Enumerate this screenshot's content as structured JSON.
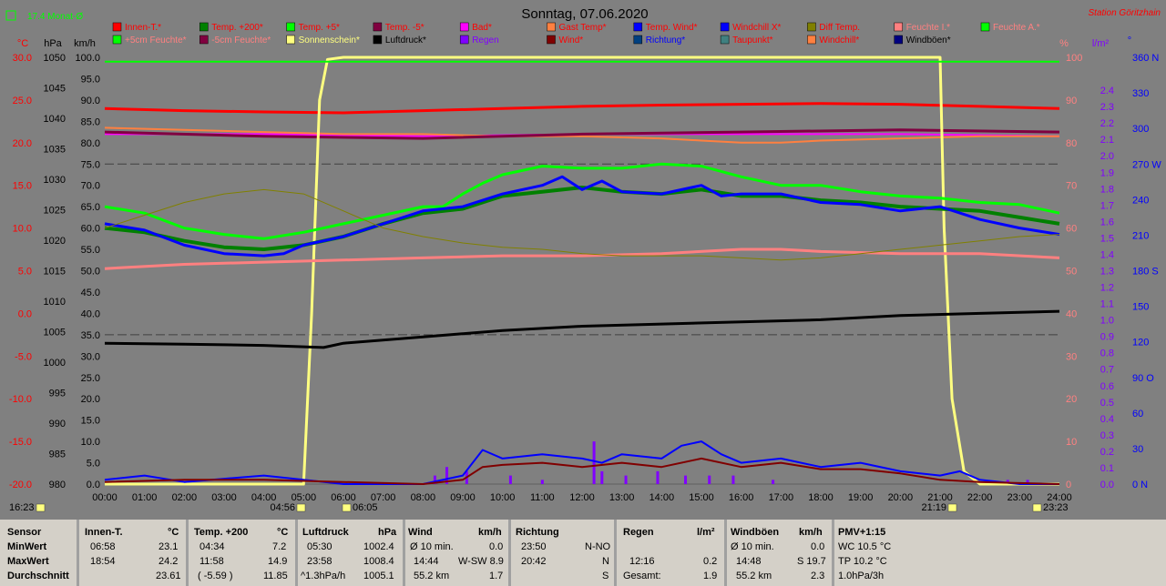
{
  "header": {
    "left_indicator": "17.4 Monat-Ø",
    "title": "Sonntag, 07.06.2020",
    "station": "Station Göritzhain"
  },
  "colors": {
    "background": "#808080",
    "footer_bg": "#d4d0c8",
    "red": "#ff0000",
    "green": "#008000",
    "lime": "#00ff00",
    "blue": "#0000ff",
    "black": "#000000",
    "salmon": "#ff8080",
    "purple": "#8000ff",
    "sun": "#ffff80"
  },
  "legend": [
    {
      "label": "Innen-T.*",
      "color": "#ff0000",
      "text_color": "#ff0000"
    },
    {
      "label": "Temp. +200*",
      "color": "#008000",
      "text_color": "#ff0000"
    },
    {
      "label": "Temp. +5*",
      "color": "#00ff00",
      "text_color": "#ff0000"
    },
    {
      "label": "Temp. -5*",
      "color": "#800040",
      "text_color": "#ff0000"
    },
    {
      "label": "Bad*",
      "color": "#ff00ff",
      "text_color": "#ff0000"
    },
    {
      "label": "Gast Temp*",
      "color": "#ff8040",
      "text_color": "#ff0000"
    },
    {
      "label": "Temp. Wind*",
      "color": "#0000ff",
      "text_color": "#ff0000"
    },
    {
      "label": "Windchill X*",
      "color": "#0000ff",
      "text_color": "#ff0000"
    },
    {
      "label": "Diff Temp.",
      "color": "#808000",
      "text_color": "#ff0000"
    },
    {
      "label": "Feuchte I.*",
      "color": "#ff8080",
      "text_color": "#ff8080"
    },
    {
      "label": "Feuchte A.*",
      "color": "#00ff00",
      "text_color": "#ff8080"
    },
    {
      "label": "+5cm Feuchte*",
      "color": "#00ff00",
      "text_color": "#ff8080"
    },
    {
      "label": "-5cm Feuchte*",
      "color": "#800040",
      "text_color": "#ff8080"
    },
    {
      "label": "Sonnenschein*",
      "color": "#ffff80",
      "text_color": "#ffff80"
    },
    {
      "label": "Luftdruck*",
      "color": "#000000",
      "text_color": "#000000"
    },
    {
      "label": "Regen",
      "color": "#8000ff",
      "text_color": "#8000ff"
    },
    {
      "label": "Wind*",
      "color": "#800000",
      "text_color": "#ff0000"
    },
    {
      "label": "Richtung*",
      "color": "#004080",
      "text_color": "#0000ff"
    },
    {
      "label": "Taupunkt*",
      "color": "#408080",
      "text_color": "#ff0000"
    },
    {
      "label": "Windchill*",
      "color": "#ff8040",
      "text_color": "#ff0000"
    },
    {
      "label": "Windböen*",
      "color": "#000080",
      "text_color": "#000000"
    }
  ],
  "axes": {
    "c_unit": "°C",
    "hpa_unit": "hPa",
    "kmh_unit": "km/h",
    "pct_unit": "%",
    "rain_unit": "l/m²",
    "deg_unit": "°",
    "c_ticks": [
      "30.0",
      "25.0",
      "20.0",
      "15.0",
      "10.0",
      "5.0",
      "0.0",
      "-5.0",
      "-10.0",
      "-15.0",
      "-20.0"
    ],
    "hpa_ticks": [
      "1050",
      "1045",
      "1040",
      "1035",
      "1030",
      "1025",
      "1020",
      "1015",
      "1010",
      "1005",
      "1000",
      "995",
      "990",
      "985",
      "980"
    ],
    "kmh_ticks": [
      "100.0",
      "95.0",
      "90.0",
      "85.0",
      "80.0",
      "75.0",
      "70.0",
      "65.0",
      "60.0",
      "55.0",
      "50.0",
      "45.0",
      "40.0",
      "35.0",
      "30.0",
      "25.0",
      "20.0",
      "15.0",
      "10.0",
      "5.0",
      "0.0"
    ],
    "pct_ticks": [
      "100",
      "90",
      "80",
      "70",
      "60",
      "50",
      "40",
      "30",
      "20",
      "10",
      "0"
    ],
    "rain_ticks": [
      "2.4",
      "2.3",
      "2.2",
      "2.1",
      "2.0",
      "1.9",
      "1.8",
      "1.7",
      "1.6",
      "1.5",
      "1.4",
      "1.3",
      "1.2",
      "1.1",
      "1.0",
      "0.9",
      "0.8",
      "0.7",
      "0.6",
      "0.5",
      "0.4",
      "0.3",
      "0.2",
      "0.1",
      "0.0"
    ],
    "dir_ticks": [
      "360 N",
      "330",
      "300",
      "270 W",
      "240",
      "210",
      "180 S",
      "150",
      "120",
      "90 O",
      "60",
      "30",
      "0 N"
    ],
    "time_ticks": [
      "00:00",
      "01:00",
      "02:00",
      "03:00",
      "04:00",
      "05:00",
      "06:00",
      "07:00",
      "08:00",
      "09:00",
      "10:00",
      "11:00",
      "12:00",
      "13:00",
      "14:00",
      "15:00",
      "16:00",
      "17:00",
      "18:00",
      "19:00",
      "20:00",
      "21:00",
      "22:00",
      "23:00",
      "24:00"
    ]
  },
  "sun_markers": {
    "left": "16:23",
    "sunrise": "04:56",
    "astro_rise": "06:05",
    "sunset": "21:19",
    "right": "23:23"
  },
  "chart_data": {
    "type": "line",
    "title": "Sonntag, 07.06.2020",
    "x_unit": "hour",
    "x_range": [
      0,
      24
    ],
    "ylim_kmh": [
      0,
      100
    ],
    "ylim_c": [
      -20,
      30
    ],
    "ylim_hpa": [
      980,
      1050
    ],
    "grid": false,
    "reference_lines_kmh": [
      75,
      35
    ],
    "series": [
      {
        "name": "Innen-T.*",
        "axis": "kmh",
        "color": "#ff0000",
        "width": 3,
        "x": [
          0,
          2,
          4,
          6,
          8,
          10,
          12,
          14,
          16,
          18,
          20,
          22,
          24
        ],
        "y": [
          88,
          87.5,
          87.2,
          87,
          87.5,
          88,
          88.5,
          88.8,
          89,
          89.2,
          89,
          88.5,
          88
        ]
      },
      {
        "name": "Bad*",
        "axis": "kmh",
        "color": "#ff00ff",
        "width": 2,
        "x": [
          0,
          4,
          8,
          12,
          16,
          20,
          24
        ],
        "y": [
          82,
          82,
          81.5,
          82,
          82,
          82,
          81.5
        ]
      },
      {
        "name": "Gast Temp*",
        "axis": "kmh",
        "color": "#ff8040",
        "width": 2,
        "x": [
          0,
          2,
          4,
          6,
          8,
          10,
          12,
          14,
          15,
          16,
          17,
          18,
          20,
          22,
          24
        ],
        "y": [
          83.5,
          83,
          82.5,
          82,
          82,
          81.5,
          81.5,
          81,
          80.5,
          80,
          80,
          80.5,
          81,
          81.5,
          81.5
        ]
      },
      {
        "name": "Temp. -5*",
        "axis": "kmh",
        "color": "#800040",
        "width": 3,
        "x": [
          0,
          4,
          8,
          12,
          16,
          20,
          24
        ],
        "y": [
          82.5,
          81.5,
          81,
          82,
          82.5,
          83,
          82.5
        ]
      },
      {
        "name": "Sonnenschein*",
        "axis": "kmh",
        "color": "#ffff80",
        "width": 3,
        "x": [
          0,
          5.0,
          5.2,
          5.4,
          5.6,
          6.0,
          21.0,
          21.1,
          21.3,
          21.6,
          22,
          24
        ],
        "y": [
          0,
          0,
          40,
          90,
          99.5,
          100,
          100,
          60,
          20,
          3,
          0,
          0
        ]
      },
      {
        "name": "Feuchte A.*",
        "axis": "kmh",
        "color": "#00ff00",
        "width": 2,
        "x": [
          0,
          24
        ],
        "y": [
          99,
          99
        ]
      },
      {
        "name": "Temp. +5*",
        "axis": "kmh",
        "color": "#00ff00",
        "width": 3,
        "x": [
          0,
          1,
          2,
          3,
          4,
          5,
          6,
          7,
          8,
          8.5,
          9,
          9.5,
          10,
          11,
          12,
          13,
          14,
          15,
          16,
          17,
          18,
          19,
          20,
          21,
          22,
          23,
          24
        ],
        "y": [
          65,
          63.5,
          60,
          58.5,
          57.5,
          59,
          61,
          63,
          65,
          65,
          68,
          70.5,
          72.5,
          74.5,
          74,
          74,
          75,
          74.5,
          72,
          70,
          70,
          68.5,
          67.5,
          67,
          66,
          65.5,
          63.5
        ]
      },
      {
        "name": "Temp. +200*",
        "axis": "kmh",
        "color": "#008000",
        "width": 4,
        "x": [
          0,
          1,
          2,
          3,
          4,
          5,
          6,
          7,
          8,
          9,
          10,
          11,
          12,
          13,
          14,
          15,
          16,
          17,
          18,
          19,
          20,
          21,
          22,
          23,
          24
        ],
        "y": [
          60,
          59,
          57,
          55.5,
          55,
          56,
          58,
          61,
          63.5,
          64.5,
          67.5,
          68.5,
          69.5,
          68.5,
          68,
          69,
          67.5,
          67.5,
          66.5,
          66,
          65,
          64.5,
          64,
          62.5,
          61
        ]
      },
      {
        "name": "Temp. Wind*",
        "axis": "kmh",
        "color": "#0000ff",
        "width": 3,
        "x": [
          0,
          1,
          2,
          3,
          4,
          4.5,
          5,
          6,
          7,
          8,
          9,
          10,
          11,
          11.5,
          12,
          12.5,
          13,
          14,
          14.5,
          15,
          15.5,
          16,
          17,
          18,
          19,
          20,
          21,
          22,
          23,
          24
        ],
        "y": [
          61,
          59.5,
          56,
          54,
          53.5,
          54,
          56,
          58,
          61,
          64,
          65,
          68,
          70,
          72,
          69,
          71,
          68.5,
          68,
          69,
          70,
          67.5,
          68,
          68,
          66,
          65.5,
          64,
          65,
          62,
          60,
          58.5
        ]
      },
      {
        "name": "Feuchte I.*",
        "axis": "kmh",
        "color": "#ff8080",
        "width": 3,
        "x": [
          0,
          2,
          4,
          6,
          8,
          10,
          12,
          14,
          16,
          17,
          18,
          20,
          22,
          24
        ],
        "y": [
          50.5,
          51.5,
          52,
          52.5,
          53,
          53.5,
          53.5,
          54,
          55,
          55,
          54.5,
          54,
          54,
          53
        ]
      },
      {
        "name": "Luftdruck*",
        "axis": "kmh",
        "color": "#000000",
        "width": 3,
        "x": [
          0,
          2,
          4,
          5.5,
          6,
          8,
          10,
          12,
          14,
          16,
          18,
          20,
          22,
          24
        ],
        "y": [
          33,
          32.8,
          32.5,
          32,
          33,
          34.5,
          36,
          37,
          37.5,
          38,
          38.5,
          39.5,
          40,
          40.5
        ]
      },
      {
        "name": "Windböen*",
        "axis": "kmh",
        "color": "#0000ff",
        "width": 2,
        "x": [
          0,
          1,
          2,
          4,
          5,
          6,
          8,
          9,
          9.5,
          10,
          11,
          12,
          12.5,
          13,
          14,
          14.5,
          15,
          15.5,
          16,
          17,
          18,
          19,
          20,
          21,
          21.5,
          22,
          23,
          24
        ],
        "y": [
          1,
          2,
          0.5,
          2,
          1,
          0,
          0,
          2,
          8,
          6,
          7,
          6,
          5,
          7,
          6,
          9,
          10,
          7,
          5,
          6,
          4,
          5,
          3,
          2,
          3,
          1,
          0,
          0
        ]
      },
      {
        "name": "Wind*",
        "axis": "kmh",
        "color": "#800000",
        "width": 2,
        "x": [
          0,
          2,
          4,
          6,
          8,
          9,
          9.5,
          10,
          11,
          12,
          13,
          14,
          15,
          16,
          17,
          18,
          19,
          20,
          21,
          22,
          24
        ],
        "y": [
          0.5,
          1,
          1,
          0.5,
          0,
          1,
          4,
          4.5,
          5,
          4,
          5,
          4,
          6,
          4,
          5,
          3.5,
          3.5,
          2.5,
          1,
          0.5,
          0
        ]
      },
      {
        "name": "Taupunkt*",
        "axis": "kmh",
        "color": "#808000",
        "width": 1,
        "x": [
          0,
          1,
          2,
          3,
          4,
          5,
          6,
          7,
          8,
          9,
          10,
          11,
          12,
          13,
          14,
          15,
          16,
          17,
          18,
          19,
          20,
          21,
          22,
          23,
          24
        ],
        "y": [
          60,
          63,
          66,
          68,
          69,
          68,
          64,
          60,
          58,
          56.5,
          55.5,
          55,
          54,
          53.5,
          53.5,
          53.5,
          53,
          52.5,
          53,
          54,
          55,
          56,
          57,
          58,
          58.5
        ]
      }
    ],
    "rain_bars_kmh": {
      "x": [
        8.3,
        8.6,
        9.1,
        10.2,
        11.0,
        12.3,
        12.5,
        13.1,
        13.9,
        14.6,
        15.2,
        15.8,
        16.8,
        22.7,
        23.2
      ],
      "y": [
        2,
        4,
        3,
        2,
        1,
        10,
        3,
        2,
        3,
        2,
        2,
        2,
        1,
        1,
        1
      ]
    }
  },
  "footer": {
    "sensor": {
      "title": "Sensor",
      "rows": [
        "MinWert",
        "MaxWert",
        "Durchschnitt"
      ]
    },
    "innen": {
      "title": "Innen-T.",
      "unit": "°C",
      "min_time": "06:58",
      "min": "23.1",
      "max_time": "18:54",
      "max": "24.2",
      "avg": "23.61"
    },
    "temp200": {
      "title": "Temp. +200",
      "unit": "°C",
      "min_time": "04:34",
      "min": "7.2",
      "max_time": "11:58",
      "max": "14.9",
      "avg_note": "( -5.59 )",
      "avg": "11.85"
    },
    "luftdruck": {
      "title": "Luftdruck",
      "unit": "hPa",
      "min_time": "05:30",
      "min": "1002.4",
      "max_time": "23:58",
      "max": "1008.4",
      "trend": "^1.3hPa/h",
      "avg": "1005.1"
    },
    "wind": {
      "title": "Wind",
      "unit": "km/h",
      "r1_label": "Ø 10 min.",
      "r1_val": "0.0",
      "r2_time": "14:44",
      "r2_dir": "W-SW 8.9",
      "r3_dist": "55.2 km",
      "r3_val": "1.7"
    },
    "richtung": {
      "title": "Richtung",
      "r1_time": "23:50",
      "r1_val": "N-NO",
      "r2_time": "20:42",
      "r2_val": "N",
      "r3_val": "S"
    },
    "regen": {
      "title": "Regen",
      "unit": "l/m²",
      "r2_time": "12:16",
      "r2_val": "0.2",
      "r3_label": "Gesamt:",
      "r3_val": "1.9"
    },
    "windboeen": {
      "title": "Windböen",
      "unit": "km/h",
      "r1_label": "Ø 10 min.",
      "r1_val": "0.0",
      "r2_time": "14:48",
      "r2_val": "S 19.7",
      "r3_dist": "55.2 km",
      "r3_val": "2.3"
    },
    "pmv": {
      "title": "PMV+1:15",
      "r1": "WC 10.5 °C",
      "r2": "TP 10.2 °C",
      "r3": "1.0hPa/3h"
    }
  }
}
